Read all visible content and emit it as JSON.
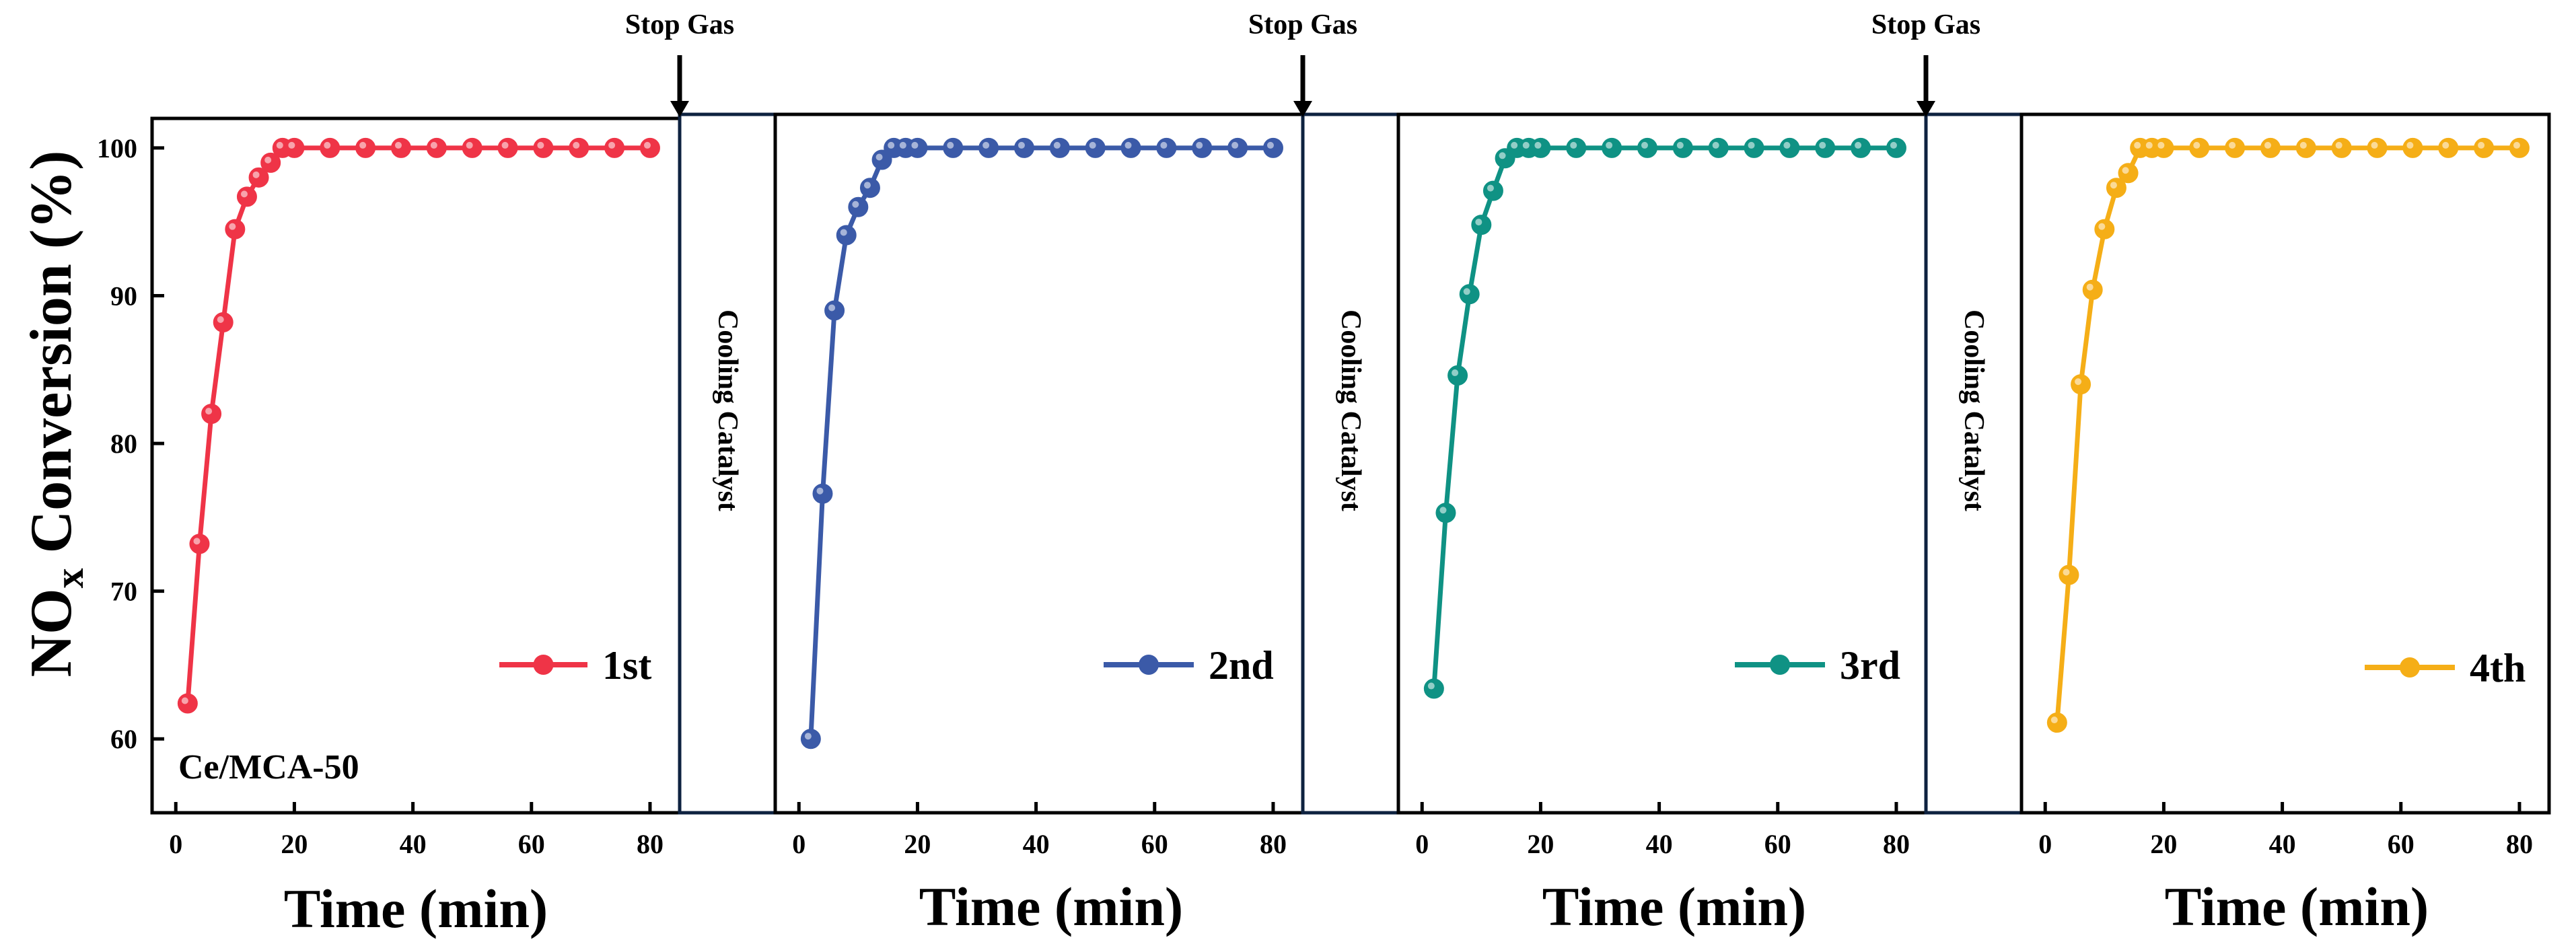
{
  "chart_data": {
    "type": "line",
    "y_label_main": "NO",
    "y_label_sub": "x",
    "y_label_rest": " Conversion (%)",
    "ylim": [
      55,
      102
    ],
    "y_ticks": [
      60,
      70,
      80,
      90,
      100
    ],
    "xlim": [
      -4,
      85
    ],
    "x_ticks": [
      0,
      20,
      40,
      60,
      80
    ],
    "xlabel": "Time (min)",
    "sample_label": "Ce/MCA-50",
    "stop_label": "Stop Gas",
    "cooling_label": "Cooling Catalyst",
    "series": [
      {
        "name": "1st",
        "color": "#ef3447",
        "x": [
          2,
          4,
          6,
          8,
          10,
          12,
          14,
          16,
          18,
          20,
          26,
          32,
          38,
          44,
          50,
          56,
          62,
          68,
          74,
          80
        ],
        "values": [
          62.4,
          73.2,
          82.0,
          88.2,
          94.5,
          96.7,
          98.0,
          99.0,
          100,
          100,
          100,
          100,
          100,
          100,
          100,
          100,
          100,
          100,
          100,
          100
        ]
      },
      {
        "name": "2nd",
        "color": "#3b5aa8",
        "x": [
          2,
          4,
          6,
          8,
          10,
          12,
          14,
          16,
          18,
          20,
          26,
          32,
          38,
          44,
          50,
          56,
          62,
          68,
          74,
          80
        ],
        "values": [
          60.0,
          76.6,
          89.0,
          94.1,
          96.0,
          97.3,
          99.2,
          100,
          100,
          100,
          100,
          100,
          100,
          100,
          100,
          100,
          100,
          100,
          100,
          100
        ]
      },
      {
        "name": "3rd",
        "color": "#0f9284",
        "x": [
          2,
          4,
          6,
          8,
          10,
          12,
          14,
          16,
          18,
          20,
          26,
          32,
          38,
          44,
          50,
          56,
          62,
          68,
          74,
          80
        ],
        "values": [
          63.4,
          75.3,
          84.6,
          90.1,
          94.8,
          97.1,
          99.3,
          100,
          100,
          100,
          100,
          100,
          100,
          100,
          100,
          100,
          100,
          100,
          100,
          100
        ]
      },
      {
        "name": "4th",
        "color": "#f5ae17",
        "x": [
          2,
          4,
          6,
          8,
          10,
          12,
          14,
          16,
          18,
          20,
          26,
          32,
          38,
          44,
          50,
          56,
          62,
          68,
          74,
          80
        ],
        "values": [
          61.1,
          71.1,
          84.0,
          90.4,
          94.5,
          97.3,
          98.3,
          100,
          100,
          100,
          100,
          100,
          100,
          100,
          100,
          100,
          100,
          100,
          100,
          100
        ]
      }
    ]
  }
}
